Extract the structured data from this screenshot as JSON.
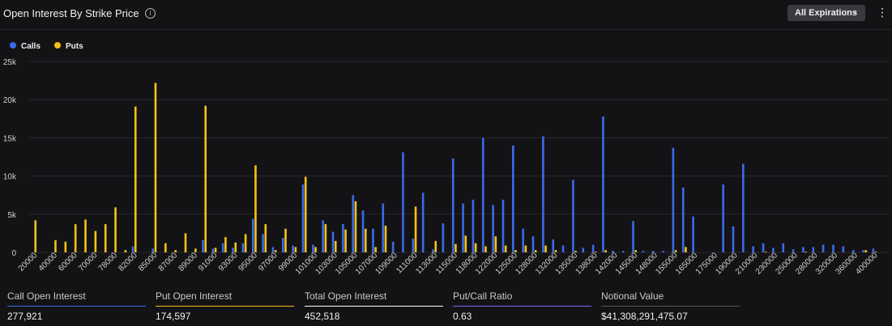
{
  "header": {
    "title": "Open Interest By Strike Price",
    "info_icon": "i",
    "dropdown_label": "All Expirations",
    "dropdown_icon": "chevron-down-icon",
    "menu_icon": "kebab-menu-icon"
  },
  "colors": {
    "calls": "#3b6ae8",
    "puts": "#f5c115"
  },
  "chart_data": {
    "type": "bar",
    "legend": {
      "position": "top-left",
      "items": [
        "Calls",
        "Puts"
      ]
    },
    "ylim": [
      0,
      25000
    ],
    "yticks": [
      "0",
      "5k",
      "10k",
      "15k",
      "20k",
      "25k"
    ],
    "grid": true,
    "categories": [
      "20000",
      "30000",
      "40000",
      "50000",
      "60000",
      "65000",
      "70000",
      "75000",
      "78000",
      "80000",
      "82000",
      "84000",
      "85000",
      "86000",
      "87000",
      "88000",
      "89000",
      "90000",
      "91000",
      "92000",
      "93000",
      "94000",
      "95000",
      "96000",
      "97000",
      "98000",
      "99000",
      "100000",
      "101000",
      "102000",
      "103000",
      "104000",
      "105000",
      "106000",
      "107000",
      "108000",
      "109000",
      "110000",
      "111000",
      "112000",
      "113000",
      "114000",
      "115000",
      "116000",
      "118000",
      "120000",
      "122000",
      "124000",
      "125000",
      "126000",
      "128000",
      "130000",
      "132000",
      "134000",
      "135000",
      "136000",
      "138000",
      "140000",
      "142000",
      "144000",
      "145000",
      "146000",
      "148000",
      "150000",
      "155000",
      "160000",
      "165000",
      "170000",
      "175000",
      "180000",
      "190000",
      "200000",
      "210000",
      "220000",
      "230000",
      "240000",
      "250000",
      "260000",
      "280000",
      "300000",
      "320000",
      "340000",
      "360000",
      "380000",
      "400000",
      "450000"
    ],
    "xtick_labels": [
      "20000",
      "40000",
      "60000",
      "70000",
      "78000",
      "82000",
      "85000",
      "87000",
      "89000",
      "91000",
      "93000",
      "95000",
      "97000",
      "99000",
      "101000",
      "103000",
      "105000",
      "107000",
      "109000",
      "111000",
      "113000",
      "115000",
      "118000",
      "122000",
      "125000",
      "128000",
      "132000",
      "135000",
      "138000",
      "142000",
      "145000",
      "148000",
      "155000",
      "165000",
      "175000",
      "190000",
      "210000",
      "230000",
      "250000",
      "280000",
      "320000",
      "360000",
      "400000"
    ],
    "series": [
      {
        "name": "Calls",
        "values": [
          0,
          0,
          0,
          0,
          0,
          0,
          0,
          0,
          0,
          0,
          800,
          0,
          500,
          0,
          0,
          0,
          0,
          1600,
          500,
          1200,
          600,
          1200,
          4400,
          2400,
          700,
          1900,
          900,
          8900,
          1000,
          4200,
          2700,
          3700,
          7500,
          5500,
          3100,
          6400,
          1400,
          13100,
          1800,
          7800,
          400,
          3800,
          12300,
          6400,
          6900,
          15000,
          6200,
          6900,
          14000,
          3100,
          2100,
          15200,
          1700,
          900,
          9500,
          600,
          1000,
          17800,
          200,
          200,
          4100,
          200,
          200,
          200,
          13700,
          8500,
          4700,
          0,
          0,
          8900,
          3400,
          11600,
          800,
          1200,
          600,
          1200,
          400,
          700,
          700,
          1000,
          1000,
          800,
          300,
          300,
          500,
          0
        ]
      },
      {
        "name": "Puts",
        "values": [
          4200,
          0,
          1600,
          1400,
          3700,
          4300,
          2800,
          3700,
          5900,
          300,
          19100,
          0,
          22200,
          1200,
          300,
          2500,
          500,
          19200,
          600,
          2000,
          1300,
          2400,
          11400,
          3700,
          300,
          3100,
          700,
          9900,
          700,
          3700,
          1500,
          3000,
          6700,
          3100,
          700,
          3500,
          0,
          0,
          6000,
          0,
          1500,
          0,
          1100,
          2200,
          1200,
          800,
          2100,
          900,
          300,
          900,
          300,
          900,
          300,
          0,
          200,
          0,
          100,
          300,
          0,
          0,
          300,
          0,
          0,
          0,
          300,
          700,
          0,
          0,
          0,
          0,
          0,
          0,
          0,
          100,
          0,
          0,
          0,
          100,
          0,
          0,
          0,
          0,
          0,
          300,
          100,
          0
        ]
      }
    ]
  },
  "stats": [
    {
      "label": "Call Open Interest",
      "value": "277,921",
      "color": "#3b6ae8"
    },
    {
      "label": "Put Open Interest",
      "value": "174,597",
      "color": "#f5c115"
    },
    {
      "label": "Total Open Interest",
      "value": "452,518",
      "color": "#ffffff"
    },
    {
      "label": "Put/Call Ratio",
      "value": "0.63",
      "color": "#8a5cf6"
    },
    {
      "label": "Notional Value",
      "value": "$41,308,291,475.07",
      "color": "#555555"
    }
  ]
}
